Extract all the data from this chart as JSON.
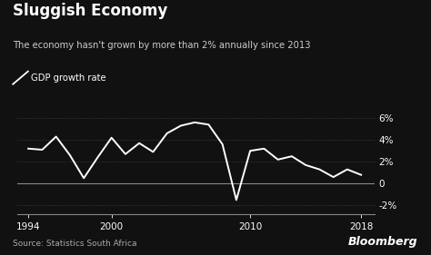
{
  "title": "Sluggish Economy",
  "subtitle": "The economy hasn't grown by more than 2% annually since 2013",
  "legend_label": "GDP growth rate",
  "source": "Source: Statistics South Africa",
  "watermark": "Bloomberg",
  "years": [
    1994,
    1995,
    1996,
    1997,
    1998,
    1999,
    2000,
    2001,
    2002,
    2003,
    2004,
    2005,
    2006,
    2007,
    2008,
    2009,
    2010,
    2011,
    2012,
    2013,
    2014,
    2015,
    2016,
    2017,
    2018
  ],
  "values": [
    3.2,
    3.1,
    4.3,
    2.6,
    0.5,
    2.4,
    4.2,
    2.7,
    3.7,
    2.9,
    4.6,
    5.3,
    5.6,
    5.4,
    3.6,
    -1.5,
    3.0,
    3.2,
    2.2,
    2.5,
    1.7,
    1.3,
    0.6,
    1.3,
    0.8
  ],
  "bg_color": "#111111",
  "line_color": "#ffffff",
  "grid_color": "#555555",
  "zero_line_color": "#888888",
  "text_color": "#ffffff",
  "subtitle_color": "#cccccc",
  "source_color": "#aaaaaa",
  "yticks": [
    -2,
    0,
    2,
    4,
    6
  ],
  "ylim": [
    -2.8,
    7.0
  ],
  "xlim": [
    1993.2,
    2019.0
  ],
  "xticks": [
    1994,
    2000,
    2010,
    2018
  ]
}
